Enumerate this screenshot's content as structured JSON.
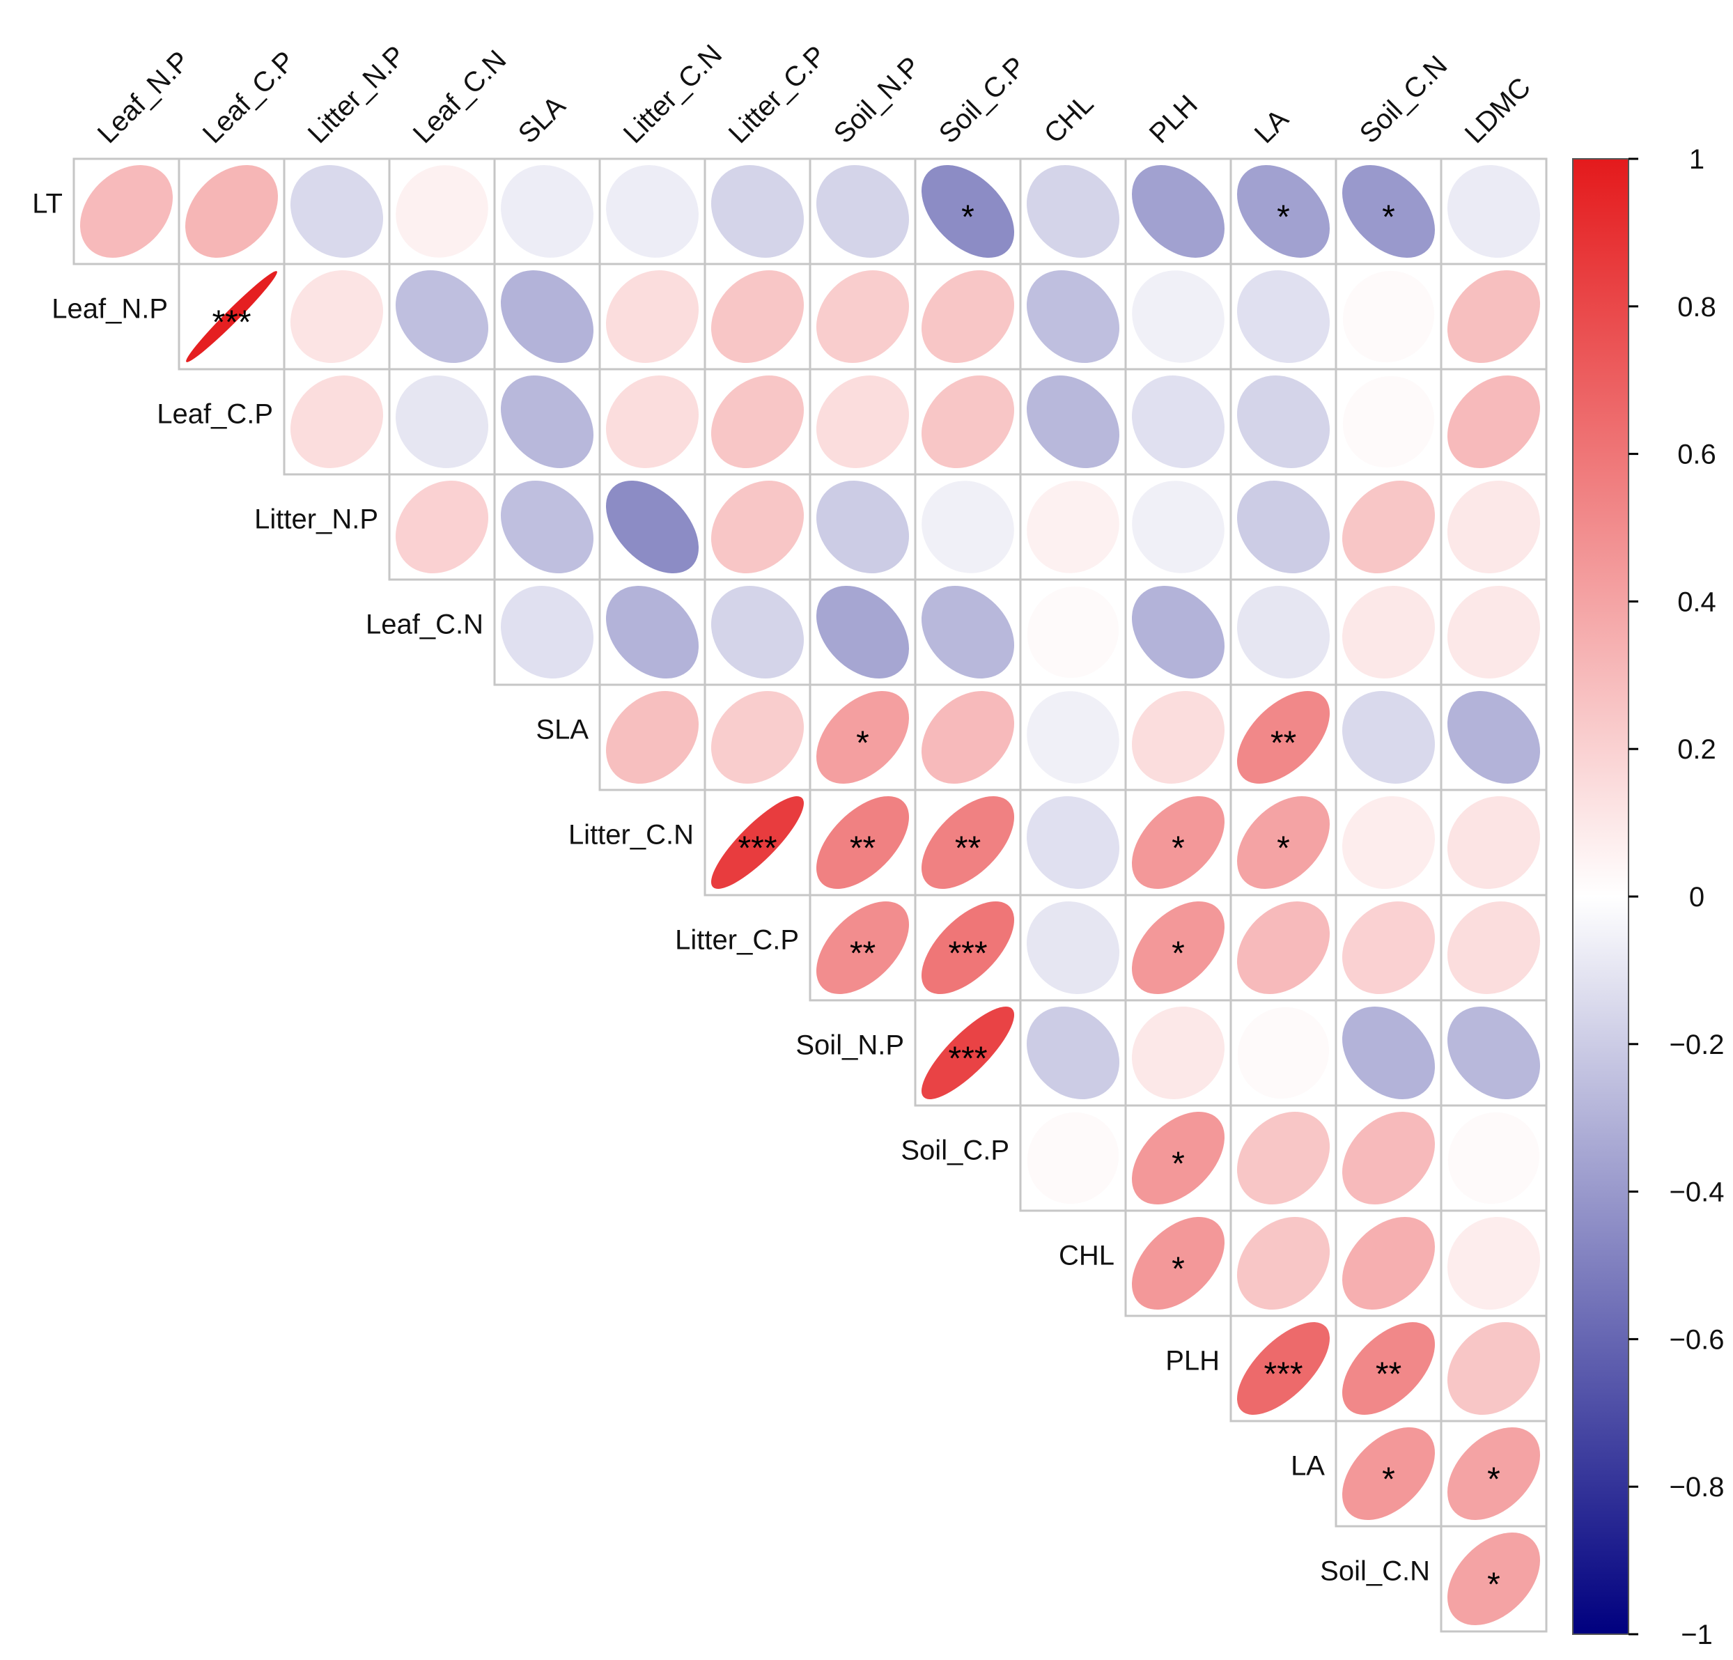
{
  "chart_data": {
    "type": "heatmap",
    "style": "corrplot-ellipse-upper",
    "title": "",
    "color_scale": {
      "min": -1,
      "max": 1,
      "low": "#00007f",
      "mid": "#ffffff",
      "high": "#e41a1c"
    },
    "colorbar_ticks": [
      "1",
      "0.8",
      "0.6",
      "0.4",
      "0.2",
      "0",
      "−0.2",
      "−0.4",
      "−0.6",
      "−0.8",
      "−1"
    ],
    "colorbar_tick_values": [
      1,
      0.8,
      0.6,
      0.4,
      0.2,
      0,
      -0.2,
      -0.4,
      -0.6,
      -0.8,
      -1
    ],
    "row_labels": [
      "LT",
      "Leaf_N.P",
      "Leaf_C.P",
      "Litter_N.P",
      "Leaf_C.N",
      "SLA",
      "Litter_C.N",
      "Litter_C.P",
      "Soil_N.P",
      "Soil_C.P",
      "CHL",
      "PLH",
      "LA",
      "Soil_C.N"
    ],
    "col_labels": [
      "Leaf_N.P",
      "Leaf_C.P",
      "Litter_N.P",
      "Leaf_C.N",
      "SLA",
      "Litter_C.N",
      "Litter_C.P",
      "Soil_N.P",
      "Soil_C.P",
      "CHL",
      "PLH",
      "LA",
      "Soil_C.N",
      "LDMC"
    ],
    "correlations": [
      [
        0.3,
        0.32,
        -0.15,
        0.06,
        -0.07,
        -0.07,
        -0.17,
        -0.17,
        -0.45,
        -0.17,
        -0.37,
        -0.37,
        -0.4,
        -0.08
      ],
      [
        null,
        0.98,
        0.12,
        -0.25,
        -0.3,
        0.15,
        0.25,
        0.22,
        0.25,
        -0.25,
        -0.06,
        -0.12,
        0.02,
        0.28
      ],
      [
        null,
        null,
        0.15,
        -0.1,
        -0.28,
        0.15,
        0.25,
        0.15,
        0.25,
        -0.28,
        -0.12,
        -0.17,
        0.02,
        0.3
      ],
      [
        null,
        null,
        null,
        0.2,
        -0.25,
        -0.45,
        0.25,
        -0.2,
        -0.06,
        0.06,
        -0.06,
        -0.2,
        0.25,
        0.1
      ],
      [
        null,
        null,
        null,
        null,
        -0.12,
        -0.3,
        -0.17,
        -0.35,
        -0.28,
        0.02,
        -0.3,
        -0.1,
        0.1,
        0.1
      ],
      [
        null,
        null,
        null,
        null,
        null,
        0.28,
        0.22,
        0.42,
        0.3,
        -0.06,
        0.15,
        0.52,
        -0.15,
        -0.3
      ],
      [
        null,
        null,
        null,
        null,
        null,
        null,
        0.85,
        0.55,
        0.55,
        -0.12,
        0.45,
        0.4,
        0.08,
        0.12
      ],
      [
        null,
        null,
        null,
        null,
        null,
        null,
        null,
        0.5,
        0.6,
        -0.1,
        0.45,
        0.3,
        0.2,
        0.15
      ],
      [
        null,
        null,
        null,
        null,
        null,
        null,
        null,
        null,
        0.82,
        -0.2,
        0.1,
        0.02,
        -0.3,
        -0.28
      ],
      [
        null,
        null,
        null,
        null,
        null,
        null,
        null,
        null,
        null,
        0.02,
        0.45,
        0.25,
        0.3,
        0.02
      ],
      [
        null,
        null,
        null,
        null,
        null,
        null,
        null,
        null,
        null,
        null,
        0.45,
        0.25,
        0.35,
        0.08
      ],
      [
        null,
        null,
        null,
        null,
        null,
        null,
        null,
        null,
        null,
        null,
        null,
        0.65,
        0.52,
        0.25
      ],
      [
        null,
        null,
        null,
        null,
        null,
        null,
        null,
        null,
        null,
        null,
        null,
        null,
        0.45,
        0.4
      ],
      [
        null,
        null,
        null,
        null,
        null,
        null,
        null,
        null,
        null,
        null,
        null,
        null,
        null,
        0.4
      ]
    ],
    "significance": [
      [
        "",
        "",
        "",
        "",
        "",
        "",
        "",
        "",
        "*",
        "",
        "",
        "*",
        "*",
        ""
      ],
      [
        "",
        "***",
        "",
        "",
        "",
        "",
        "",
        "",
        "",
        "",
        "",
        "",
        "",
        ""
      ],
      [
        "",
        "",
        "",
        "",
        "",
        "",
        "",
        "",
        "",
        "",
        "",
        "",
        "",
        ""
      ],
      [
        "",
        "",
        "",
        "",
        "",
        "",
        "",
        "",
        "",
        "",
        "",
        "",
        "",
        ""
      ],
      [
        "",
        "",
        "",
        "",
        "",
        "",
        "",
        "",
        "",
        "",
        "",
        "",
        "",
        ""
      ],
      [
        "",
        "",
        "",
        "",
        "",
        "",
        "",
        "*",
        "",
        "",
        "",
        "**",
        "",
        ""
      ],
      [
        "",
        "",
        "",
        "",
        "",
        "",
        "***",
        "**",
        "**",
        "",
        "*",
        "*",
        "",
        ""
      ],
      [
        "",
        "",
        "",
        "",
        "",
        "",
        "",
        "**",
        "***",
        "",
        "*",
        "",
        "",
        ""
      ],
      [
        "",
        "",
        "",
        "",
        "",
        "",
        "",
        "",
        "***",
        "",
        "",
        "",
        "",
        ""
      ],
      [
        "",
        "",
        "",
        "",
        "",
        "",
        "",
        "",
        "",
        "",
        "*",
        "",
        "",
        ""
      ],
      [
        "",
        "",
        "",
        "",
        "",
        "",
        "",
        "",
        "",
        "",
        "*",
        "",
        "",
        ""
      ],
      [
        "",
        "",
        "",
        "",
        "",
        "",
        "",
        "",
        "",
        "",
        "",
        "***",
        "**",
        ""
      ],
      [
        "",
        "",
        "",
        "",
        "",
        "",
        "",
        "",
        "",
        "",
        "",
        "",
        "*",
        "*"
      ],
      [
        "",
        "",
        "",
        "",
        "",
        "",
        "",
        "",
        "",
        "",
        "",
        "",
        "",
        "*"
      ]
    ]
  }
}
